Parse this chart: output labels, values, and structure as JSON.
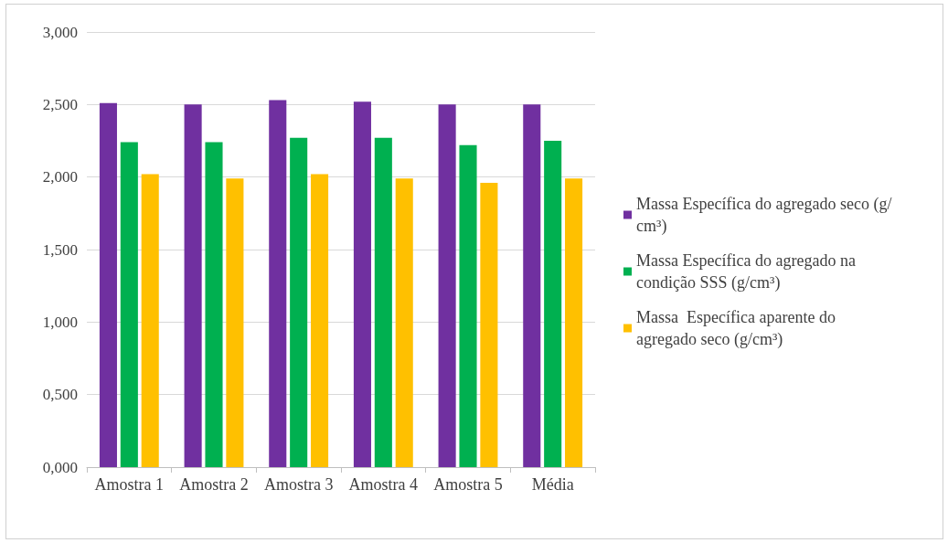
{
  "chart_data": {
    "type": "bar",
    "categories": [
      "Amostra 1",
      "Amostra 2",
      "Amostra 3",
      "Amostra 4",
      "Amostra 5",
      "Média"
    ],
    "series": [
      {
        "name": "Massa Específica do agregado seco (g/cm³)",
        "color": "#7030a0",
        "values": [
          2.51,
          2.5,
          2.53,
          2.52,
          2.5,
          2.5
        ]
      },
      {
        "name": "Massa Específica do agregado na condição SSS (g/cm³)",
        "color": "#00b050",
        "values": [
          2.24,
          2.24,
          2.27,
          2.27,
          2.22,
          2.25
        ]
      },
      {
        "name": "Massa  Específica aparente do agregado seco (g/cm³)",
        "color": "#ffc000",
        "values": [
          2.02,
          1.99,
          2.02,
          1.99,
          1.96,
          1.99
        ]
      }
    ],
    "ylim": [
      0,
      3
    ],
    "yticks": [
      {
        "value": 0,
        "label": "0,000"
      },
      {
        "value": 0.5,
        "label": "0,500"
      },
      {
        "value": 1,
        "label": "1,000"
      },
      {
        "value": 1.5,
        "label": "1,500"
      },
      {
        "value": 2,
        "label": "2,000"
      },
      {
        "value": 2.5,
        "label": "2,500"
      },
      {
        "value": 3,
        "label": "3,000"
      }
    ],
    "grid": "y",
    "legend": "right"
  }
}
